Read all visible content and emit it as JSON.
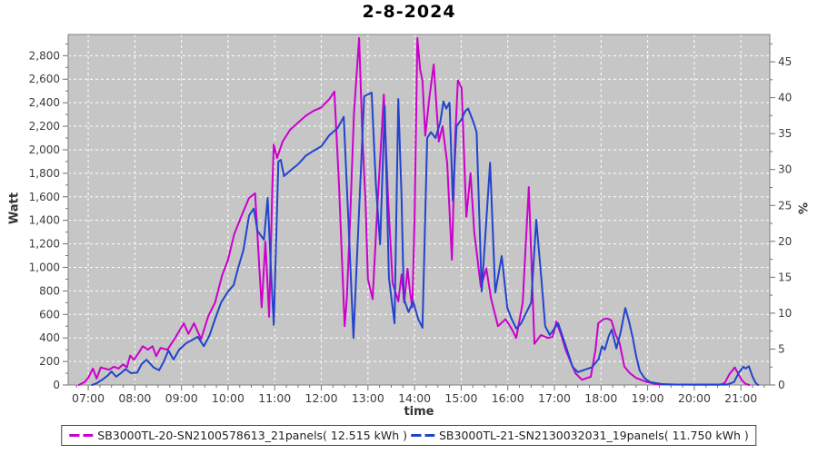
{
  "title": "2-8-2024",
  "axes": {
    "left": {
      "label": "Watt",
      "tick_values": [
        0,
        200,
        400,
        600,
        800,
        1000,
        1200,
        1400,
        1600,
        1800,
        2000,
        2200,
        2400,
        2600,
        2800
      ],
      "tick_labels": [
        "0",
        "200",
        "400",
        "600",
        "800",
        "1,000",
        "1,200",
        "1,400",
        "1,600",
        "1,800",
        "2,000",
        "2,200",
        "2,400",
        "2,600",
        "2,800"
      ],
      "minor_step": 100,
      "range": [
        0,
        2980
      ]
    },
    "right": {
      "label": "%",
      "tick_values": [
        0,
        5,
        10,
        15,
        20,
        25,
        30,
        35,
        40,
        45
      ],
      "tick_labels": [
        "0",
        "5",
        "10",
        "15",
        "20",
        "25",
        "30",
        "35",
        "40",
        "45"
      ],
      "minor_step": 2.5,
      "range": [
        0,
        48.8
      ]
    },
    "bottom": {
      "label": "time",
      "tick_hours": [
        7,
        8,
        9,
        10,
        11,
        12,
        13,
        14,
        15,
        16,
        17,
        18,
        19,
        20,
        21
      ],
      "tick_labels": [
        "07:00",
        "08:00",
        "09:00",
        "10:00",
        "11:00",
        "12:00",
        "13:00",
        "14:00",
        "15:00",
        "16:00",
        "17:00",
        "18:00",
        "19:00",
        "20:00",
        "21:00"
      ],
      "minor_step_hours": 0.25,
      "range_hours": [
        6.57,
        21.62
      ]
    }
  },
  "legend": {
    "entries": [
      {
        "label": "SB3000TL-20-SN2100578613_21panels( 12.515 kWh )",
        "color": "#cc00cc"
      },
      {
        "label": "SB3000TL-21-SN2130032031_19panels( 11.750 kWh )",
        "color": "#2244cc"
      }
    ]
  },
  "colors": {
    "page_bg": "#ffffff",
    "plot_bg": "#c6c6c6",
    "grid": "#ffffff",
    "plot_border": "#808080",
    "tick_text": "#3c3c3c"
  },
  "chart_data": {
    "type": "line",
    "title": "2-8-2024",
    "xlabel": "time",
    "ylabel_left": "Watt",
    "ylabel_right": "%",
    "grid": true,
    "legend_position": "bottom",
    "x_unit": "decimal hours of day",
    "series": [
      {
        "name": "SB3000TL-20-SN2100578613_21panels( 12.515 kWh )",
        "color": "#cc00cc",
        "points": [
          [
            6.8,
            0
          ],
          [
            6.92,
            25
          ],
          [
            7.0,
            60
          ],
          [
            7.1,
            140
          ],
          [
            7.18,
            55
          ],
          [
            7.27,
            150
          ],
          [
            7.35,
            140
          ],
          [
            7.45,
            130
          ],
          [
            7.55,
            155
          ],
          [
            7.65,
            140
          ],
          [
            7.75,
            175
          ],
          [
            7.83,
            150
          ],
          [
            7.9,
            250
          ],
          [
            7.98,
            215
          ],
          [
            8.07,
            265
          ],
          [
            8.17,
            330
          ],
          [
            8.28,
            300
          ],
          [
            8.38,
            330
          ],
          [
            8.46,
            245
          ],
          [
            8.55,
            315
          ],
          [
            8.7,
            300
          ],
          [
            8.88,
            410
          ],
          [
            9.05,
            525
          ],
          [
            9.15,
            435
          ],
          [
            9.27,
            525
          ],
          [
            9.42,
            390
          ],
          [
            9.58,
            590
          ],
          [
            9.72,
            700
          ],
          [
            9.87,
            930
          ],
          [
            10.0,
            1065
          ],
          [
            10.13,
            1280
          ],
          [
            10.28,
            1430
          ],
          [
            10.45,
            1590
          ],
          [
            10.58,
            1630
          ],
          [
            10.67,
            1000
          ],
          [
            10.72,
            660
          ],
          [
            10.8,
            1220
          ],
          [
            10.88,
            580
          ],
          [
            10.95,
            1700
          ],
          [
            10.98,
            2045
          ],
          [
            11.05,
            1930
          ],
          [
            11.17,
            2070
          ],
          [
            11.33,
            2170
          ],
          [
            11.5,
            2230
          ],
          [
            11.67,
            2290
          ],
          [
            11.83,
            2330
          ],
          [
            12.0,
            2360
          ],
          [
            12.17,
            2430
          ],
          [
            12.28,
            2495
          ],
          [
            12.38,
            1700
          ],
          [
            12.5,
            500
          ],
          [
            12.55,
            750
          ],
          [
            12.62,
            1430
          ],
          [
            12.7,
            2300
          ],
          [
            12.81,
            2950
          ],
          [
            12.88,
            2120
          ],
          [
            12.95,
            1530
          ],
          [
            13.0,
            900
          ],
          [
            13.1,
            730
          ],
          [
            13.2,
            1500
          ],
          [
            13.34,
            2470
          ],
          [
            13.43,
            1600
          ],
          [
            13.53,
            865
          ],
          [
            13.6,
            780
          ],
          [
            13.65,
            710
          ],
          [
            13.72,
            940
          ],
          [
            13.78,
            700
          ],
          [
            13.85,
            990
          ],
          [
            13.9,
            800
          ],
          [
            13.95,
            660
          ],
          [
            14.0,
            1400
          ],
          [
            14.06,
            2950
          ],
          [
            14.12,
            2680
          ],
          [
            14.17,
            2590
          ],
          [
            14.23,
            2120
          ],
          [
            14.32,
            2450
          ],
          [
            14.41,
            2725
          ],
          [
            14.52,
            2070
          ],
          [
            14.6,
            2200
          ],
          [
            14.7,
            1890
          ],
          [
            14.8,
            1065
          ],
          [
            14.87,
            2100
          ],
          [
            14.93,
            2590
          ],
          [
            15.01,
            2525
          ],
          [
            15.11,
            1430
          ],
          [
            15.2,
            1800
          ],
          [
            15.28,
            1300
          ],
          [
            15.42,
            835
          ],
          [
            15.54,
            990
          ],
          [
            15.64,
            735
          ],
          [
            15.79,
            500
          ],
          [
            15.95,
            560
          ],
          [
            16.08,
            480
          ],
          [
            16.18,
            400
          ],
          [
            16.32,
            700
          ],
          [
            16.45,
            1683
          ],
          [
            16.57,
            350
          ],
          [
            16.71,
            425
          ],
          [
            16.86,
            400
          ],
          [
            16.96,
            410
          ],
          [
            17.04,
            540
          ],
          [
            17.14,
            430
          ],
          [
            17.25,
            290
          ],
          [
            17.45,
            100
          ],
          [
            17.59,
            45
          ],
          [
            17.78,
            70
          ],
          [
            17.88,
            300
          ],
          [
            17.94,
            525
          ],
          [
            18.05,
            560
          ],
          [
            18.13,
            565
          ],
          [
            18.22,
            550
          ],
          [
            18.32,
            420
          ],
          [
            18.4,
            355
          ],
          [
            18.5,
            155
          ],
          [
            18.62,
            100
          ],
          [
            18.75,
            60
          ],
          [
            18.95,
            30
          ],
          [
            19.15,
            10
          ],
          [
            19.4,
            4
          ],
          [
            19.8,
            3
          ],
          [
            20.2,
            3
          ],
          [
            20.55,
            3
          ],
          [
            20.65,
            15
          ],
          [
            20.75,
            90
          ],
          [
            20.87,
            150
          ],
          [
            20.95,
            90
          ],
          [
            21.02,
            40
          ],
          [
            21.1,
            10
          ],
          [
            21.18,
            0
          ]
        ]
      },
      {
        "name": "SB3000TL-21-SN2130032031_19panels( 11.750 kWh )",
        "color": "#2244cc",
        "points": [
          [
            7.08,
            0
          ],
          [
            7.18,
            15
          ],
          [
            7.3,
            45
          ],
          [
            7.42,
            80
          ],
          [
            7.5,
            115
          ],
          [
            7.6,
            70
          ],
          [
            7.7,
            100
          ],
          [
            7.8,
            135
          ],
          [
            7.92,
            100
          ],
          [
            8.05,
            105
          ],
          [
            8.15,
            180
          ],
          [
            8.25,
            215
          ],
          [
            8.4,
            150
          ],
          [
            8.52,
            125
          ],
          [
            8.62,
            200
          ],
          [
            8.72,
            293
          ],
          [
            8.83,
            216
          ],
          [
            8.95,
            300
          ],
          [
            9.1,
            355
          ],
          [
            9.22,
            380
          ],
          [
            9.35,
            410
          ],
          [
            9.48,
            330
          ],
          [
            9.6,
            420
          ],
          [
            9.72,
            560
          ],
          [
            9.85,
            700
          ],
          [
            10.0,
            795
          ],
          [
            10.12,
            850
          ],
          [
            10.22,
            1000
          ],
          [
            10.33,
            1150
          ],
          [
            10.45,
            1440
          ],
          [
            10.55,
            1500
          ],
          [
            10.63,
            1310
          ],
          [
            10.77,
            1235
          ],
          [
            10.85,
            1590
          ],
          [
            10.93,
            900
          ],
          [
            10.98,
            510
          ],
          [
            11.08,
            1900
          ],
          [
            11.13,
            1914
          ],
          [
            11.2,
            1776
          ],
          [
            11.33,
            1822
          ],
          [
            11.5,
            1876
          ],
          [
            11.67,
            1950
          ],
          [
            11.83,
            1990
          ],
          [
            12.0,
            2030
          ],
          [
            12.17,
            2123
          ],
          [
            12.35,
            2185
          ],
          [
            12.48,
            2280
          ],
          [
            12.58,
            1400
          ],
          [
            12.69,
            400
          ],
          [
            12.8,
            1400
          ],
          [
            12.92,
            2455
          ],
          [
            13.0,
            2470
          ],
          [
            13.08,
            2486
          ],
          [
            13.17,
            1700
          ],
          [
            13.26,
            1196
          ],
          [
            13.36,
            2370
          ],
          [
            13.45,
            911
          ],
          [
            13.57,
            525
          ],
          [
            13.65,
            2432
          ],
          [
            13.72,
            1600
          ],
          [
            13.77,
            733
          ],
          [
            13.87,
            620
          ],
          [
            13.97,
            710
          ],
          [
            14.08,
            560
          ],
          [
            14.17,
            486
          ],
          [
            14.27,
            2100
          ],
          [
            14.35,
            2150
          ],
          [
            14.45,
            2100
          ],
          [
            14.55,
            2230
          ],
          [
            14.62,
            2410
          ],
          [
            14.68,
            2350
          ],
          [
            14.75,
            2400
          ],
          [
            14.82,
            1567
          ],
          [
            14.9,
            2200
          ],
          [
            15.0,
            2254
          ],
          [
            15.09,
            2330
          ],
          [
            15.15,
            2350
          ],
          [
            15.25,
            2250
          ],
          [
            15.33,
            2150
          ],
          [
            15.44,
            795
          ],
          [
            15.62,
            1890
          ],
          [
            15.73,
            787
          ],
          [
            15.87,
            1096
          ],
          [
            15.99,
            656
          ],
          [
            16.08,
            564
          ],
          [
            16.18,
            480
          ],
          [
            16.28,
            520
          ],
          [
            16.5,
            700
          ],
          [
            16.61,
            1405
          ],
          [
            16.72,
            900
          ],
          [
            16.8,
            500
          ],
          [
            16.9,
            425
          ],
          [
            17.0,
            480
          ],
          [
            17.08,
            525
          ],
          [
            17.25,
            324
          ],
          [
            17.39,
            154
          ],
          [
            17.5,
            110
          ],
          [
            17.65,
            130
          ],
          [
            17.8,
            150
          ],
          [
            17.95,
            220
          ],
          [
            18.02,
            330
          ],
          [
            18.08,
            300
          ],
          [
            18.17,
            420
          ],
          [
            18.23,
            470
          ],
          [
            18.33,
            310
          ],
          [
            18.42,
            450
          ],
          [
            18.52,
            655
          ],
          [
            18.6,
            540
          ],
          [
            18.68,
            400
          ],
          [
            18.75,
            250
          ],
          [
            18.83,
            120
          ],
          [
            18.93,
            60
          ],
          [
            19.05,
            25
          ],
          [
            19.3,
            8
          ],
          [
            19.6,
            4
          ],
          [
            20.0,
            3
          ],
          [
            20.4,
            3
          ],
          [
            20.7,
            3
          ],
          [
            20.85,
            25
          ],
          [
            20.95,
            100
          ],
          [
            21.05,
            155
          ],
          [
            21.1,
            140
          ],
          [
            21.17,
            160
          ],
          [
            21.25,
            70
          ],
          [
            21.32,
            15
          ],
          [
            21.37,
            0
          ]
        ]
      }
    ]
  }
}
